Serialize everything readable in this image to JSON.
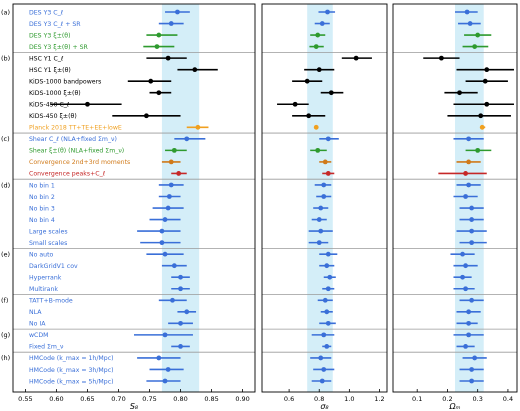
{
  "chart_data": {
    "type": "scatter",
    "description_visible": false,
    "rows": [
      {
        "label": "DES Y3 C_ℓ",
        "color": "#3a6fd8",
        "group": "a"
      },
      {
        "label": "DES Y3 C_ℓ + SR",
        "color": "#3a6fd8",
        "group": "a"
      },
      {
        "label": "DES Y3 ξ±(θ)",
        "color": "#2e9a2e",
        "group": "a"
      },
      {
        "label": "DES Y3 ξ±(θ) + SR",
        "color": "#2e9a2e",
        "group": "a"
      },
      {
        "label": "HSC Y1 C_ℓ",
        "color": "#000000",
        "group": "b"
      },
      {
        "label": "HSC Y1 ξ±(θ)",
        "color": "#000000",
        "group": "b"
      },
      {
        "label": "KiDS-1000 bandpowers",
        "color": "#000000",
        "group": "b"
      },
      {
        "label": "KiDS-1000 ξ±(θ)",
        "color": "#000000",
        "group": "b"
      },
      {
        "label": "KiDS-450 C_ℓ",
        "color": "#000000",
        "group": "b"
      },
      {
        "label": "KiDS-450 ξ±(θ)",
        "color": "#000000",
        "group": "b"
      },
      {
        "label": "Planck 2018 TT+TE+EE+lowE",
        "color": "#f0a020",
        "group": "b"
      },
      {
        "label": "Shear C_ℓ (NLA+fixed Σm_ν)",
        "color": "#3a6fd8",
        "group": "c"
      },
      {
        "label": "Shear ξ±(θ) (NLA+fixed Σm_ν)",
        "color": "#2e9a2e",
        "group": "c"
      },
      {
        "label": "Convergence 2nd+3rd moments",
        "color": "#d07a1a",
        "group": "c"
      },
      {
        "label": "Convergence peaks+C_ℓ",
        "color": "#c62828",
        "group": "c"
      },
      {
        "label": "No bin 1",
        "color": "#3a6fd8",
        "group": "d"
      },
      {
        "label": "No bin 2",
        "color": "#3a6fd8",
        "group": "d"
      },
      {
        "label": "No bin 3",
        "color": "#3a6fd8",
        "group": "d"
      },
      {
        "label": "No bin 4",
        "color": "#3a6fd8",
        "group": "d"
      },
      {
        "label": "Large scales",
        "color": "#3a6fd8",
        "group": "d"
      },
      {
        "label": "Small scales",
        "color": "#3a6fd8",
        "group": "d"
      },
      {
        "label": "No auto",
        "color": "#3a6fd8",
        "group": "e"
      },
      {
        "label": "DarkGridV1 cov",
        "color": "#3a6fd8",
        "group": "e"
      },
      {
        "label": "Hyperrank",
        "color": "#3a6fd8",
        "group": "e"
      },
      {
        "label": "Multirank",
        "color": "#3a6fd8",
        "group": "e"
      },
      {
        "label": "TATT+B-mode",
        "color": "#3a6fd8",
        "group": "f"
      },
      {
        "label": "NLA",
        "color": "#3a6fd8",
        "group": "f"
      },
      {
        "label": "No IA",
        "color": "#3a6fd8",
        "group": "f"
      },
      {
        "label": "wCDM",
        "color": "#3a6fd8",
        "group": "g"
      },
      {
        "label": "Fixed Σm_ν",
        "color": "#3a6fd8",
        "group": "g"
      },
      {
        "label": "HMCode (k_max = 1h/Mpc)",
        "color": "#3a6fd8",
        "group": "h"
      },
      {
        "label": "HMCode (k_max = 3h/Mpc)",
        "color": "#3a6fd8",
        "group": "h"
      },
      {
        "label": "HMCode (k_max = 5h/Mpc)",
        "color": "#3a6fd8",
        "group": "h"
      }
    ],
    "groups": [
      {
        "key": "a",
        "label": "(a)"
      },
      {
        "key": "b",
        "label": "(b)"
      },
      {
        "key": "c",
        "label": "(c)"
      },
      {
        "key": "d",
        "label": "(d)"
      },
      {
        "key": "e",
        "label": "(e)"
      },
      {
        "key": "f",
        "label": "(f)"
      },
      {
        "key": "g",
        "label": "(g)"
      },
      {
        "key": "h",
        "label": "(h)"
      }
    ],
    "panels": [
      {
        "xlabel": "S₈",
        "xlim": [
          0.53,
          0.92
        ],
        "xticks": [
          0.55,
          0.6,
          0.65,
          0.7,
          0.75,
          0.8,
          0.85,
          0.9
        ],
        "xtick_labels": [
          "0.55",
          "0.60",
          "0.65",
          "0.70",
          "0.75",
          "0.80",
          "0.85",
          "0.90"
        ],
        "band": [
          0.77,
          0.83
        ],
        "band_color": "#d4eef8",
        "points": [
          [
            0.795,
            0.775,
            0.815
          ],
          [
            0.785,
            0.765,
            0.805
          ],
          [
            0.765,
            0.745,
            0.795
          ],
          [
            0.762,
            0.74,
            0.79
          ],
          [
            0.78,
            0.745,
            0.81
          ],
          [
            0.823,
            0.795,
            0.86
          ],
          [
            0.752,
            0.715,
            0.785
          ],
          [
            0.765,
            0.75,
            0.785
          ],
          [
            0.65,
            0.59,
            0.705
          ],
          [
            0.745,
            0.69,
            0.8
          ],
          [
            0.828,
            0.81,
            0.845
          ],
          [
            0.81,
            0.79,
            0.84
          ],
          [
            0.79,
            0.775,
            0.81
          ],
          [
            0.785,
            0.77,
            0.8
          ],
          [
            0.797,
            0.785,
            0.81
          ],
          [
            0.785,
            0.765,
            0.805
          ],
          [
            0.782,
            0.765,
            0.8
          ],
          [
            0.78,
            0.755,
            0.805
          ],
          [
            0.775,
            0.75,
            0.8
          ],
          [
            0.77,
            0.73,
            0.8
          ],
          [
            0.77,
            0.735,
            0.8
          ],
          [
            0.775,
            0.745,
            0.805
          ],
          [
            0.79,
            0.77,
            0.81
          ],
          [
            0.8,
            0.785,
            0.815
          ],
          [
            0.8,
            0.785,
            0.815
          ],
          [
            0.787,
            0.765,
            0.81
          ],
          [
            0.81,
            0.795,
            0.825
          ],
          [
            0.8,
            0.78,
            0.82
          ],
          [
            0.775,
            0.725,
            0.82
          ],
          [
            0.8,
            0.785,
            0.815
          ],
          [
            0.765,
            0.73,
            0.8
          ],
          [
            0.78,
            0.75,
            0.805
          ],
          [
            0.775,
            0.745,
            0.8
          ]
        ]
      },
      {
        "xlabel": "σ₈",
        "xlim": [
          0.42,
          1.25
        ],
        "xticks": [
          0.6,
          0.8,
          1.0,
          1.2
        ],
        "xtick_labels": [
          "0.6",
          "0.8",
          "1.0",
          "1.2"
        ],
        "band": [
          0.72,
          0.89
        ],
        "band_color": "#d4eef8",
        "points": [
          [
            0.855,
            0.795,
            0.905
          ],
          [
            0.82,
            0.77,
            0.87
          ],
          [
            0.79,
            0.74,
            0.84
          ],
          [
            0.78,
            0.735,
            0.83
          ],
          [
            1.045,
            0.95,
            1.15
          ],
          [
            0.8,
            0.7,
            0.9
          ],
          [
            0.72,
            0.62,
            0.82
          ],
          [
            0.88,
            0.81,
            0.96
          ],
          [
            0.64,
            0.52,
            0.73
          ],
          [
            0.73,
            0.62,
            0.84
          ],
          [
            0.78,
            0.78,
            0.78
          ],
          [
            0.86,
            0.8,
            0.93
          ],
          [
            0.79,
            0.74,
            0.85
          ],
          [
            0.84,
            0.8,
            0.88
          ],
          [
            0.86,
            0.82,
            0.9
          ],
          [
            0.83,
            0.77,
            0.88
          ],
          [
            0.83,
            0.78,
            0.88
          ],
          [
            0.81,
            0.76,
            0.86
          ],
          [
            0.8,
            0.75,
            0.85
          ],
          [
            0.81,
            0.73,
            0.89
          ],
          [
            0.8,
            0.73,
            0.86
          ],
          [
            0.86,
            0.8,
            0.92
          ],
          [
            0.85,
            0.8,
            0.9
          ],
          [
            0.87,
            0.83,
            0.91
          ],
          [
            0.86,
            0.82,
            0.9
          ],
          [
            0.84,
            0.79,
            0.89
          ],
          [
            0.85,
            0.81,
            0.89
          ],
          [
            0.86,
            0.8,
            0.91
          ],
          [
            0.83,
            0.75,
            0.9
          ],
          [
            0.85,
            0.82,
            0.88
          ],
          [
            0.81,
            0.74,
            0.88
          ],
          [
            0.83,
            0.76,
            0.9
          ],
          [
            0.82,
            0.75,
            0.88
          ]
        ]
      },
      {
        "xlabel": "Ωₘ",
        "xlim": [
          0.02,
          0.43
        ],
        "xticks": [
          0.1,
          0.2,
          0.3,
          0.4
        ],
        "xtick_labels": [
          "0.1",
          "0.2",
          "0.3",
          "0.4"
        ],
        "band": [
          0.225,
          0.32
        ],
        "band_color": "#d4eef8",
        "points": [
          [
            0.265,
            0.225,
            0.3
          ],
          [
            0.275,
            0.235,
            0.31
          ],
          [
            0.3,
            0.255,
            0.345
          ],
          [
            0.29,
            0.25,
            0.335
          ],
          [
            0.18,
            0.12,
            0.24
          ],
          [
            0.33,
            0.23,
            0.42
          ],
          [
            0.325,
            0.26,
            0.4
          ],
          [
            0.24,
            0.19,
            0.3
          ],
          [
            0.33,
            0.22,
            0.42
          ],
          [
            0.31,
            0.2,
            0.41
          ],
          [
            0.315,
            0.31,
            0.325
          ],
          [
            0.27,
            0.22,
            0.32
          ],
          [
            0.3,
            0.26,
            0.345
          ],
          [
            0.27,
            0.23,
            0.31
          ],
          [
            0.26,
            0.17,
            0.33
          ],
          [
            0.27,
            0.23,
            0.31
          ],
          [
            0.26,
            0.22,
            0.3
          ],
          [
            0.28,
            0.24,
            0.32
          ],
          [
            0.28,
            0.24,
            0.32
          ],
          [
            0.28,
            0.23,
            0.33
          ],
          [
            0.28,
            0.24,
            0.33
          ],
          [
            0.25,
            0.21,
            0.29
          ],
          [
            0.26,
            0.22,
            0.3
          ],
          [
            0.25,
            0.22,
            0.28
          ],
          [
            0.26,
            0.22,
            0.29
          ],
          [
            0.28,
            0.24,
            0.32
          ],
          [
            0.27,
            0.23,
            0.31
          ],
          [
            0.27,
            0.23,
            0.3
          ],
          [
            0.27,
            0.22,
            0.32
          ],
          [
            0.26,
            0.23,
            0.29
          ],
          [
            0.29,
            0.25,
            0.33
          ],
          [
            0.28,
            0.24,
            0.32
          ],
          [
            0.28,
            0.24,
            0.32
          ]
        ]
      }
    ]
  }
}
